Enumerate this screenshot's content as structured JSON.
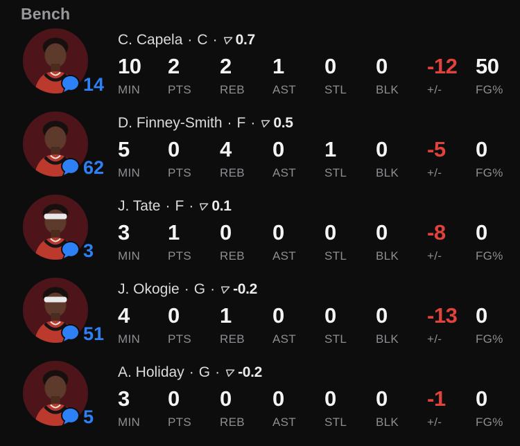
{
  "section": {
    "title": "Bench"
  },
  "table": {
    "columns": [
      "MIN",
      "PTS",
      "REB",
      "AST",
      "STL",
      "BLK",
      "+/-",
      "FG%"
    ],
    "name_separator": "·"
  },
  "players": [
    {
      "name": "C. Capela",
      "position": "C",
      "rating": "0.7",
      "comments": "14",
      "headband": false,
      "stats": [
        "10",
        "2",
        "2",
        "1",
        "0",
        "0",
        "-12",
        "50"
      ]
    },
    {
      "name": "D. Finney-Smith",
      "position": "F",
      "rating": "0.5",
      "comments": "62",
      "headband": false,
      "stats": [
        "5",
        "0",
        "4",
        "0",
        "1",
        "0",
        "-5",
        "0"
      ]
    },
    {
      "name": "J. Tate",
      "position": "F",
      "rating": "0.1",
      "comments": "3",
      "headband": true,
      "stats": [
        "3",
        "1",
        "0",
        "0",
        "0",
        "0",
        "-8",
        "0"
      ]
    },
    {
      "name": "J. Okogie",
      "position": "G",
      "rating": "-0.2",
      "comments": "51",
      "headband": true,
      "stats": [
        "4",
        "0",
        "1",
        "0",
        "0",
        "0",
        "-13",
        "0"
      ]
    },
    {
      "name": "A. Holiday",
      "position": "G",
      "rating": "-0.2",
      "comments": "5",
      "headband": false,
      "stats": [
        "3",
        "0",
        "0",
        "0",
        "0",
        "0",
        "-1",
        "0"
      ]
    }
  ],
  "icons": {
    "comment": "speech-bubble-icon",
    "rating": "wedge-rating-icon"
  },
  "colors": {
    "background": "#0d0d0d",
    "title_gray": "#97979c",
    "name_text": "#dbdbde",
    "value_text": "#f4f4f4",
    "label_gray": "#8e8e93",
    "negative_red": "#e0423c",
    "comment_blue": "#2e80f5",
    "avatar_background": "#4d151a",
    "jersey_red": "#bc392e"
  }
}
